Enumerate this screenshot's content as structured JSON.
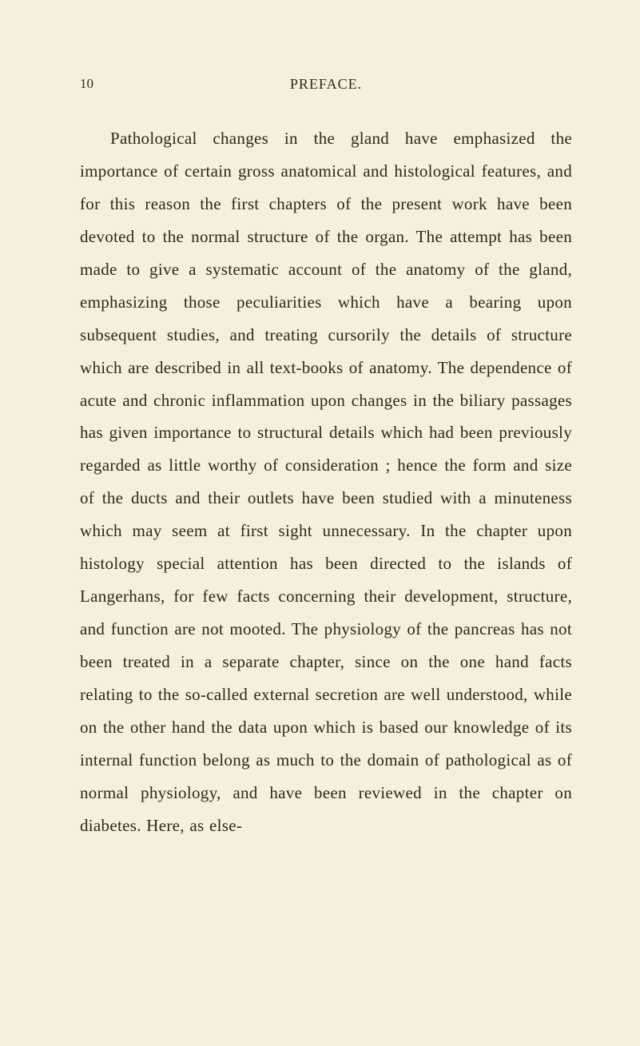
{
  "page": {
    "number": "10",
    "section_title": "PREFACE.",
    "background_color": "#f5f0dc",
    "text_color": "#2a2a1a"
  },
  "body": {
    "paragraph": "Pathological changes in the gland have emphasized the importance of certain gross anatomical and histological features, and for this reason the first chapters of the present work have been devoted to the normal structure of the organ. The attempt has been made to give a systematic account of the anatomy of the gland, emphasizing those peculiarities which have a bearing upon subsequent studies, and treating cursorily the details of structure which are described in all text-books of anatomy. The dependence of acute and chronic inflammation upon changes in the biliary passages has given importance to structural details which had been previously regarded as little worthy of consideration ; hence the form and size of the ducts and their outlets have been studied with a minuteness which may seem at first sight unnecessary. In the chapter upon histology special attention has been directed to the islands of Langerhans, for few facts concerning their development, structure, and function are not mooted. The physiology of the pancreas has not been treated in a separate chapter, since on the one hand facts relating to the so-called external secretion are well understood, while on the other hand the data upon which is based our knowledge of its internal function belong as much to the domain of pathological as of normal physiology, and have been reviewed in the chapter on diabetes. Here, as else-"
  },
  "typography": {
    "body_font_family": "Georgia, 'Times New Roman', serif",
    "body_font_size": 21,
    "body_line_height": 1.95,
    "header_font_size": 18,
    "page_number_font_size": 17
  }
}
